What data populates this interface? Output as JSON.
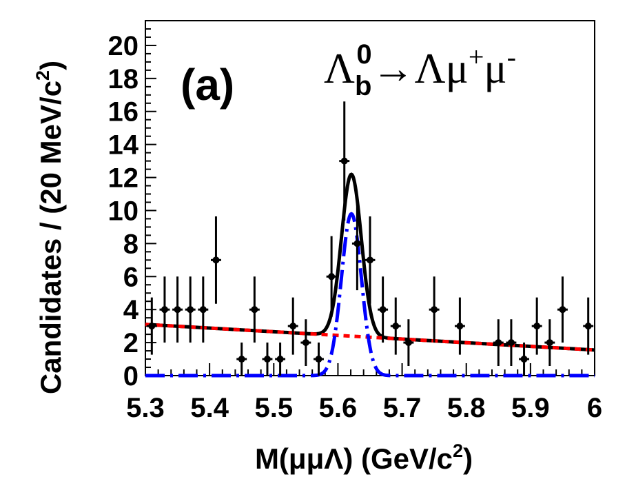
{
  "chart_data": {
    "type": "scatter",
    "panel_label": "(a)",
    "decay_label": {
      "parent": "Λ",
      "parent_sub": "b",
      "parent_sup": "0",
      "arrow": "→",
      "daughter1": "Λμ",
      "daughter1_sup": "+",
      "daughter2": "μ",
      "daughter2_sup": "-"
    },
    "xlabel": {
      "prefix": "M(μμΛ) (GeV/c",
      "sup": "2",
      "suffix": ")"
    },
    "ylabel": {
      "prefix": "Candidates / (20 MeV/c",
      "sup": "2",
      "suffix": ")"
    },
    "xlim": [
      5.3,
      6.0
    ],
    "ylim": [
      0,
      21.5
    ],
    "x_ticks": [
      "5.3",
      "5.4",
      "5.5",
      "5.6",
      "5.7",
      "5.8",
      "5.9",
      "6"
    ],
    "y_ticks": [
      "0",
      "2",
      "4",
      "6",
      "8",
      "10",
      "12",
      "14",
      "16",
      "18",
      "20"
    ],
    "bin_width": 0.02,
    "data": [
      {
        "x": 5.31,
        "y": 3
      },
      {
        "x": 5.33,
        "y": 4
      },
      {
        "x": 5.35,
        "y": 4
      },
      {
        "x": 5.37,
        "y": 4
      },
      {
        "x": 5.39,
        "y": 4
      },
      {
        "x": 5.41,
        "y": 7
      },
      {
        "x": 5.43,
        "y": 0
      },
      {
        "x": 5.45,
        "y": 1
      },
      {
        "x": 5.47,
        "y": 4
      },
      {
        "x": 5.49,
        "y": 1
      },
      {
        "x": 5.51,
        "y": 1
      },
      {
        "x": 5.53,
        "y": 3
      },
      {
        "x": 5.55,
        "y": 2
      },
      {
        "x": 5.57,
        "y": 1
      },
      {
        "x": 5.59,
        "y": 6
      },
      {
        "x": 5.61,
        "y": 13
      },
      {
        "x": 5.63,
        "y": 8
      },
      {
        "x": 5.65,
        "y": 7
      },
      {
        "x": 5.67,
        "y": 4
      },
      {
        "x": 5.69,
        "y": 3
      },
      {
        "x": 5.71,
        "y": 2
      },
      {
        "x": 5.73,
        "y": 0
      },
      {
        "x": 5.75,
        "y": 4
      },
      {
        "x": 5.77,
        "y": 0
      },
      {
        "x": 5.79,
        "y": 3
      },
      {
        "x": 5.81,
        "y": 0
      },
      {
        "x": 5.83,
        "y": 0
      },
      {
        "x": 5.85,
        "y": 2
      },
      {
        "x": 5.87,
        "y": 2
      },
      {
        "x": 5.89,
        "y": 1
      },
      {
        "x": 5.91,
        "y": 3
      },
      {
        "x": 5.93,
        "y": 2
      },
      {
        "x": 5.95,
        "y": 4
      },
      {
        "x": 5.97,
        "y": 0
      },
      {
        "x": 5.99,
        "y": 3
      }
    ],
    "fit": {
      "signal_peak": 5.621,
      "signal_sigma": 0.0155,
      "signal_amplitude": 9.8,
      "background_at_xmin": 3.1,
      "background_at_xmax": 1.55
    },
    "series": [
      {
        "style": "solid",
        "color": "#000000"
      },
      {
        "style": "dashed",
        "color": "#ff0000"
      },
      {
        "style": "dash-dot",
        "color": "#0000ff"
      }
    ]
  }
}
